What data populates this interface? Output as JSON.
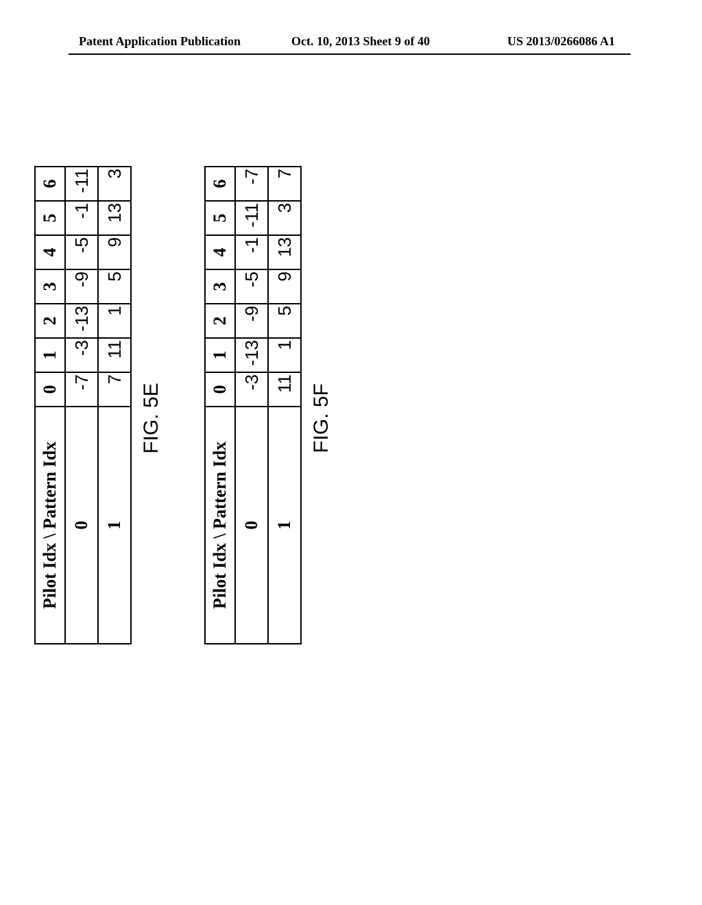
{
  "header": {
    "left": "Patent Application Publication",
    "center": "Oct. 10, 2013  Sheet 9 of 40",
    "right": "US 2013/0266086 A1"
  },
  "figures": [
    {
      "caption": "FIG. 5E",
      "corner_label": "Pilot Idx \\ Pattern Idx",
      "col_headers": [
        "0",
        "1",
        "2",
        "3",
        "4",
        "5",
        "6"
      ],
      "rows": [
        {
          "label": "0",
          "cells": [
            "-7",
            "-3",
            "-13",
            "-9",
            "-5",
            "-1",
            "-11"
          ]
        },
        {
          "label": "1",
          "cells": [
            "7",
            "11",
            "1",
            "5",
            "9",
            "13",
            "3"
          ]
        }
      ]
    },
    {
      "caption": "FIG. 5F",
      "corner_label": "Pilot Idx \\ Pattern Idx",
      "col_headers": [
        "0",
        "1",
        "2",
        "3",
        "4",
        "5",
        "6"
      ],
      "rows": [
        {
          "label": "0",
          "cells": [
            "-3",
            "-13",
            "-9",
            "-5",
            "-1",
            "-11",
            "-7"
          ]
        },
        {
          "label": "1",
          "cells": [
            "11",
            "1",
            "5",
            "9",
            "13",
            "3",
            "7"
          ]
        }
      ]
    }
  ]
}
